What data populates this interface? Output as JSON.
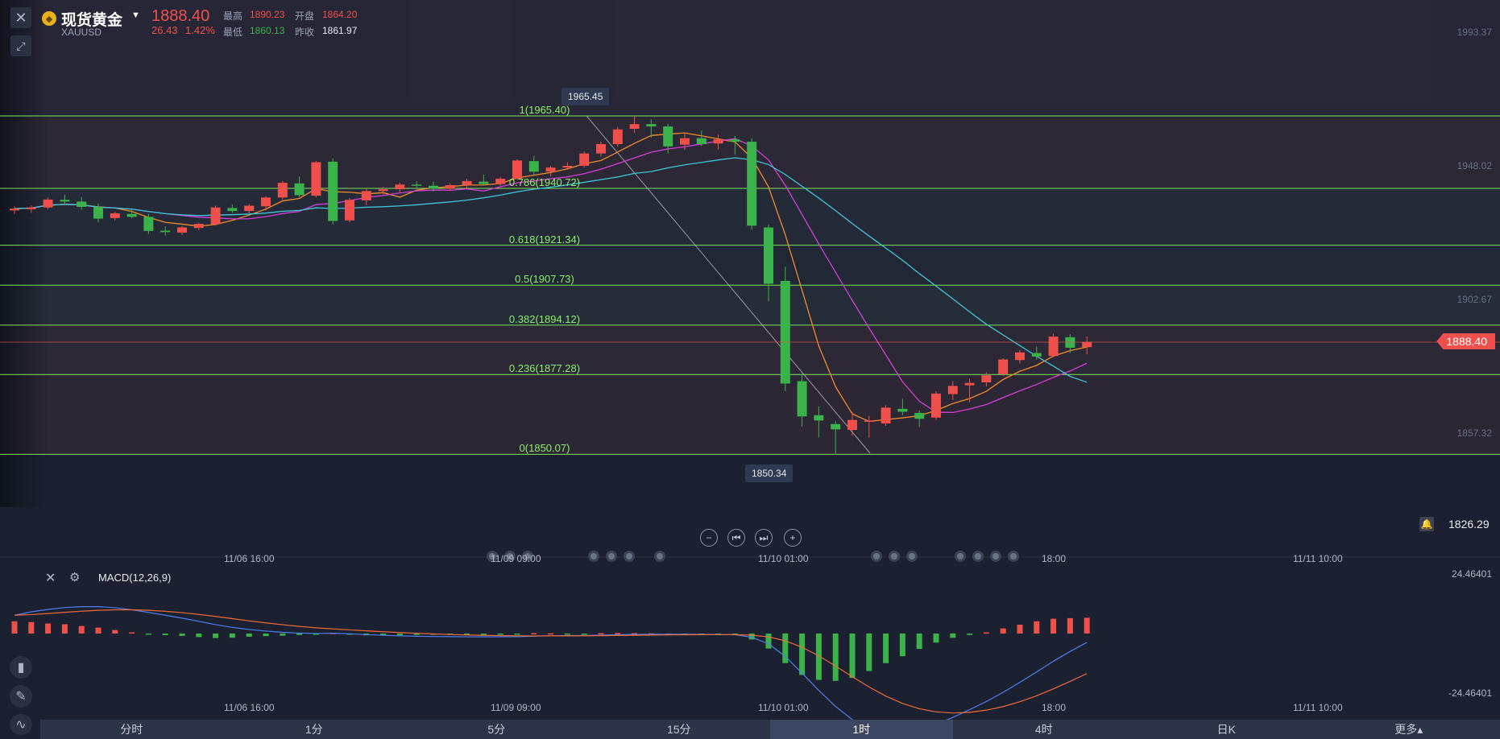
{
  "header": {
    "symbol_name": "现货黄金",
    "symbol_code": "XAUUSD",
    "last_price": "1888.40",
    "change": "26.43",
    "change_pct": "1.42%",
    "high_label": "最高",
    "high_value": "1890.23",
    "open_label": "开盘",
    "open_value": "1864.20",
    "low_label": "最低",
    "low_value": "1860.13",
    "prev_close_label": "昨收",
    "prev_close_value": "1861.97"
  },
  "price_axis": {
    "ticks": [
      "1993.37",
      "1948.02",
      "1902.67",
      "1857.32"
    ],
    "current_price_tag": "1888.40",
    "lower_price": "1826.29"
  },
  "time_axis": {
    "labels": [
      "11/06 16:00",
      "11/09 09:00",
      "11/10 01:00",
      "18:00",
      "11/11 10:00"
    ]
  },
  "fibonacci": {
    "levels": [
      {
        "label": "1(1965.40)",
        "price": 1965.4
      },
      {
        "label": "0.786(1940.72)",
        "price": 1940.72
      },
      {
        "label": "0.618(1921.34)",
        "price": 1921.34
      },
      {
        "label": "0.5(1907.73)",
        "price": 1907.73
      },
      {
        "label": "0.382(1894.12)",
        "price": 1894.12
      },
      {
        "label": "0.236(1877.28)",
        "price": 1877.28
      },
      {
        "label": "0(1850.07)",
        "price": 1850.07
      }
    ],
    "high_callout": "1965.45",
    "low_callout": "1850.34"
  },
  "macd": {
    "title": "MACD(12,26,9)",
    "axis_top": "24.46401",
    "axis_bottom": "-24.46401"
  },
  "periods": {
    "items": [
      "分时",
      "1分",
      "5分",
      "15分",
      "1时",
      "4时",
      "日K",
      "更多▴"
    ],
    "active_index": 4
  },
  "colors": {
    "up": "#f0504b",
    "down": "#3ab34a",
    "fib_line": "#7fe35c",
    "ma_fast": "#f08c2a",
    "ma_mid": "#d63fd6",
    "ma_slow": "#3fc6d6",
    "macd_dif": "#4f7ff0",
    "macd_dea": "#f06a3a"
  },
  "chart_data": {
    "type": "candlestick",
    "series": [
      {
        "name": "candles",
        "values": [
          [
            1933.2,
            1934.6,
            1932.0,
            1933.8
          ],
          [
            1933.6,
            1935.0,
            1932.4,
            1934.2
          ],
          [
            1934.2,
            1937.6,
            1933.6,
            1936.9
          ],
          [
            1936.8,
            1938.5,
            1935.0,
            1936.2
          ],
          [
            1936.2,
            1937.8,
            1933.4,
            1934.4
          ],
          [
            1934.4,
            1935.6,
            1929.1,
            1930.4
          ],
          [
            1930.6,
            1932.8,
            1929.8,
            1932.2
          ],
          [
            1932.0,
            1933.4,
            1930.5,
            1931.0
          ],
          [
            1931.0,
            1932.0,
            1925.2,
            1926.2
          ],
          [
            1926.3,
            1927.8,
            1924.6,
            1925.8
          ],
          [
            1925.6,
            1927.9,
            1924.9,
            1927.4
          ],
          [
            1927.2,
            1929.0,
            1926.4,
            1928.6
          ],
          [
            1928.5,
            1934.8,
            1928.0,
            1934.2
          ],
          [
            1934.0,
            1935.2,
            1932.3,
            1933.0
          ],
          [
            1933.0,
            1935.4,
            1932.2,
            1934.8
          ],
          [
            1934.6,
            1938.0,
            1933.2,
            1937.6
          ],
          [
            1937.6,
            1943.2,
            1936.8,
            1942.6
          ],
          [
            1942.4,
            1944.8,
            1937.8,
            1938.4
          ],
          [
            1938.2,
            1950.0,
            1937.6,
            1949.6
          ],
          [
            1949.8,
            1951.0,
            1928.4,
            1929.6
          ],
          [
            1929.8,
            1937.4,
            1929.2,
            1936.8
          ],
          [
            1936.6,
            1940.4,
            1935.0,
            1939.8
          ],
          [
            1939.8,
            1941.2,
            1938.6,
            1940.4
          ],
          [
            1940.4,
            1942.6,
            1939.4,
            1942.0
          ],
          [
            1942.0,
            1943.2,
            1940.6,
            1941.6
          ],
          [
            1941.6,
            1943.0,
            1939.6,
            1940.6
          ],
          [
            1940.6,
            1942.4,
            1939.8,
            1941.8
          ],
          [
            1941.8,
            1944.0,
            1940.8,
            1943.2
          ],
          [
            1943.0,
            1945.4,
            1941.6,
            1942.2
          ],
          [
            1942.2,
            1944.6,
            1941.6,
            1944.0
          ],
          [
            1944.0,
            1950.6,
            1943.6,
            1950.2
          ],
          [
            1950.0,
            1951.8,
            1945.2,
            1946.4
          ],
          [
            1946.4,
            1948.4,
            1944.8,
            1947.8
          ],
          [
            1947.8,
            1949.6,
            1947.0,
            1948.4
          ],
          [
            1948.4,
            1953.2,
            1947.8,
            1952.6
          ],
          [
            1952.6,
            1956.6,
            1951.6,
            1955.8
          ],
          [
            1955.8,
            1961.6,
            1955.0,
            1960.8
          ],
          [
            1961.0,
            1965.45,
            1959.6,
            1962.6
          ],
          [
            1962.6,
            1964.2,
            1958.0,
            1961.8
          ],
          [
            1961.8,
            1962.6,
            1952.6,
            1955.0
          ],
          [
            1955.6,
            1959.8,
            1953.8,
            1957.8
          ],
          [
            1957.8,
            1960.4,
            1955.2,
            1955.8
          ],
          [
            1956.0,
            1959.0,
            1954.0,
            1957.4
          ],
          [
            1957.4,
            1958.6,
            1952.2,
            1956.6
          ],
          [
            1956.6,
            1957.8,
            1926.6,
            1928.0
          ],
          [
            1927.4,
            1928.4,
            1902.2,
            1908.2
          ],
          [
            1909.2,
            1914.0,
            1871.6,
            1874.2
          ],
          [
            1875.0,
            1877.6,
            1859.4,
            1863.0
          ],
          [
            1863.4,
            1866.4,
            1855.8,
            1861.6
          ],
          [
            1860.4,
            1861.4,
            1850.34,
            1858.6
          ],
          [
            1858.4,
            1864.6,
            1856.4,
            1861.8
          ],
          [
            1861.4,
            1863.2,
            1855.8,
            1861.6
          ],
          [
            1860.6,
            1866.8,
            1859.8,
            1866.0
          ],
          [
            1865.6,
            1869.0,
            1863.4,
            1864.6
          ],
          [
            1864.2,
            1865.0,
            1859.4,
            1862.2
          ],
          [
            1862.6,
            1871.6,
            1861.8,
            1870.8
          ],
          [
            1870.6,
            1875.0,
            1868.6,
            1873.4
          ],
          [
            1873.6,
            1875.8,
            1867.8,
            1874.4
          ],
          [
            1874.6,
            1878.0,
            1873.2,
            1877.0
          ],
          [
            1877.4,
            1882.8,
            1876.8,
            1882.4
          ],
          [
            1882.2,
            1885.6,
            1881.0,
            1884.8
          ],
          [
            1884.6,
            1886.8,
            1882.4,
            1883.4
          ],
          [
            1883.6,
            1891.2,
            1883.2,
            1890.2
          ],
          [
            1890.0,
            1891.0,
            1884.6,
            1886.4
          ],
          [
            1886.6,
            1890.23,
            1884.2,
            1888.4
          ]
        ]
      },
      {
        "name": "macd_hist",
        "values": [
          6.2,
          5.8,
          5.1,
          4.7,
          3.8,
          3.0,
          1.8,
          0.6,
          -0.3,
          -0.8,
          -1.2,
          -1.8,
          -2.3,
          -2.1,
          -1.6,
          -1.3,
          -1.1,
          -0.7,
          -0.4,
          0.3,
          -0.6,
          -0.9,
          -0.9,
          -0.8,
          -0.7,
          -0.6,
          -0.5,
          -0.5,
          -0.4,
          -0.3,
          -0.2,
          0.2,
          0.1,
          -0.1,
          -0.1,
          0.2,
          0.3,
          0.2,
          0.1,
          0.0,
          -0.1,
          -0.2,
          -0.2,
          -0.4,
          -3.0,
          -7.6,
          -15.0,
          -21.0,
          -23.5,
          -24.0,
          -22.5,
          -19.0,
          -15.0,
          -11.5,
          -7.8,
          -4.6,
          -2.2,
          -0.7,
          0.6,
          2.6,
          4.5,
          6.2,
          7.5,
          7.8,
          8.0
        ]
      }
    ],
    "ylim": [
      1826.29,
      1993.37
    ]
  }
}
